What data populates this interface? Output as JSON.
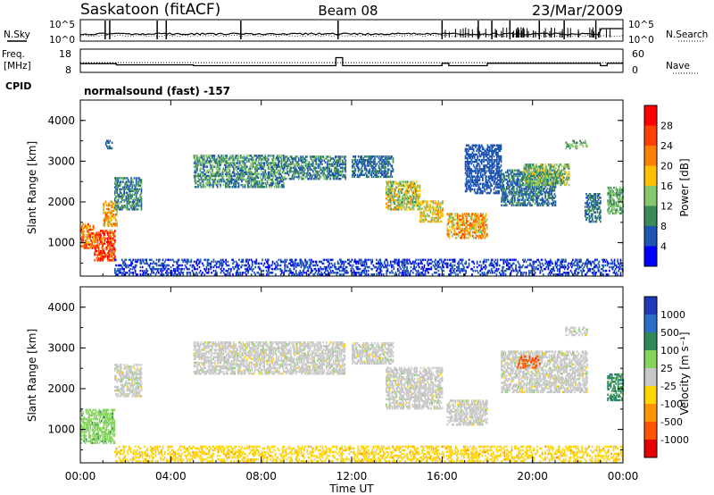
{
  "header": {
    "station": "Saskatoon (fitACF)",
    "beam": "Beam 08",
    "date": "23/Mar/2009"
  },
  "noise_panel": {
    "left_label": "N.Sky",
    "right_label": "N.Search",
    "left_ticks": [
      "10^5",
      "10^0"
    ],
    "right_ticks": [
      "10^5",
      "10^0"
    ]
  },
  "freq_panel": {
    "left_label_1": "Freq.",
    "left_label_2": "[MHz]",
    "right_label": "Nave",
    "left_ticks": [
      "18",
      "8"
    ],
    "right_ticks": [
      "60",
      "0"
    ]
  },
  "cpid": {
    "label": "CPID",
    "text": "normalsound (fast) -157"
  },
  "colors": {
    "power_scale": [
      "#0000ff",
      "#1f56b4",
      "#3a8a5a",
      "#86c66c",
      "#ffc000",
      "#ff8000",
      "#ff4000",
      "#ff0000"
    ],
    "velocity_scale": [
      "#1f3ab8",
      "#2b6fc6",
      "#2e8b57",
      "#85d45c",
      "#c8c8c8",
      "#ffd400",
      "#ff9500",
      "#ff5500",
      "#e60000"
    ],
    "ground_scatter": "#a0a0a0"
  },
  "chart_data": [
    {
      "type": "heatmap",
      "name": "Power",
      "ylabel": "Slant Range [km]",
      "ylim": [
        180,
        4500
      ],
      "yticks": [
        "1000",
        "2000",
        "3000",
        "4000"
      ],
      "xlim": [
        0,
        24
      ],
      "colorbar": {
        "label": "Power [dB]",
        "ticks": [
          "4",
          "8",
          "12",
          "16",
          "20",
          "24",
          "28"
        ],
        "range": [
          0,
          32
        ]
      },
      "regions": [
        {
          "t0": 0.0,
          "t1": 0.6,
          "r0": 850,
          "r1": 1450,
          "v0": 16,
          "v1": 30
        },
        {
          "t0": 0.6,
          "t1": 1.5,
          "r0": 550,
          "r1": 1300,
          "v0": 20,
          "v1": 32
        },
        {
          "t0": 1.0,
          "t1": 1.6,
          "r0": 1400,
          "r1": 2000,
          "v0": 14,
          "v1": 26
        },
        {
          "t0": 1.5,
          "t1": 2.7,
          "r0": 1800,
          "r1": 2600,
          "v0": 4,
          "v1": 14
        },
        {
          "t0": 1.1,
          "t1": 1.4,
          "r0": 3300,
          "r1": 3500,
          "v0": 4,
          "v1": 10
        },
        {
          "t0": 5.0,
          "t1": 9.0,
          "r0": 2350,
          "r1": 3150,
          "v0": 4,
          "v1": 16
        },
        {
          "t0": 9.0,
          "t1": 11.7,
          "r0": 2550,
          "r1": 3100,
          "v0": 4,
          "v1": 14
        },
        {
          "t0": 12.0,
          "t1": 13.8,
          "r0": 2600,
          "r1": 3100,
          "v0": 4,
          "v1": 10
        },
        {
          "t0": 13.5,
          "t1": 15.0,
          "r0": 1800,
          "r1": 2500,
          "v0": 10,
          "v1": 22
        },
        {
          "t0": 15.0,
          "t1": 16.0,
          "r0": 1500,
          "r1": 2000,
          "v0": 12,
          "v1": 22
        },
        {
          "t0": 16.2,
          "t1": 18.0,
          "r0": 1100,
          "r1": 1700,
          "v0": 14,
          "v1": 26
        },
        {
          "t0": 17.0,
          "t1": 18.6,
          "r0": 2200,
          "r1": 3400,
          "v0": 4,
          "v1": 8
        },
        {
          "t0": 18.6,
          "t1": 21.0,
          "r0": 1900,
          "r1": 2800,
          "v0": 4,
          "v1": 12
        },
        {
          "t0": 19.6,
          "t1": 21.6,
          "r0": 2400,
          "r1": 2900,
          "v0": 8,
          "v1": 18
        },
        {
          "t0": 21.4,
          "t1": 22.4,
          "r0": 3300,
          "r1": 3500,
          "v0": 10,
          "v1": 14
        },
        {
          "t0": 22.3,
          "t1": 23.0,
          "r0": 1500,
          "r1": 2200,
          "v0": 4,
          "v1": 12
        },
        {
          "t0": 23.3,
          "t1": 24.0,
          "r0": 1700,
          "r1": 2350,
          "v0": 8,
          "v1": 16
        },
        {
          "t0": 1.5,
          "t1": 24.0,
          "r0": 200,
          "r1": 600,
          "v0": 2,
          "v1": 8
        }
      ]
    },
    {
      "type": "heatmap",
      "name": "Velocity",
      "ylabel": "Slant Range [km]",
      "ylim": [
        180,
        4500
      ],
      "yticks": [
        "1000",
        "2000",
        "3000",
        "4000"
      ],
      "xlim": [
        0,
        24
      ],
      "colorbar": {
        "label": "Velocity [m s⁻¹]",
        "ticks": [
          "1000",
          "500",
          "100",
          "25",
          "-25",
          "-100",
          "-500",
          "-1000"
        ]
      },
      "regions": [
        {
          "t0": 0.0,
          "t1": 1.5,
          "r0": 650,
          "r1": 1500,
          "cat": 3
        },
        {
          "t0": 1.5,
          "t1": 2.7,
          "r0": 1800,
          "r1": 2600,
          "cat": 4
        },
        {
          "t0": 5.0,
          "t1": 11.7,
          "r0": 2350,
          "r1": 3150,
          "cat": 4
        },
        {
          "t0": 12.0,
          "t1": 13.8,
          "r0": 2600,
          "r1": 3100,
          "cat": 4
        },
        {
          "t0": 13.5,
          "t1": 16.0,
          "r0": 1500,
          "r1": 2500,
          "cat": 4
        },
        {
          "t0": 16.2,
          "t1": 18.0,
          "r0": 1100,
          "r1": 1700,
          "cat": 4
        },
        {
          "t0": 18.6,
          "t1": 22.4,
          "r0": 1900,
          "r1": 2900,
          "cat": 4
        },
        {
          "t0": 19.3,
          "t1": 20.3,
          "r0": 2500,
          "r1": 2800,
          "cat": 7
        },
        {
          "t0": 21.4,
          "t1": 22.4,
          "r0": 3300,
          "r1": 3500,
          "cat": 4
        },
        {
          "t0": 23.3,
          "t1": 24.0,
          "r0": 1700,
          "r1": 2350,
          "cat": 2
        },
        {
          "t0": 1.5,
          "t1": 24.0,
          "r0": 200,
          "r1": 600,
          "cat": 5
        }
      ]
    }
  ],
  "xaxis": {
    "label": "Time UT",
    "ticks": [
      "00:00",
      "04:00",
      "08:00",
      "12:00",
      "16:00",
      "20:00",
      "00:00"
    ]
  }
}
